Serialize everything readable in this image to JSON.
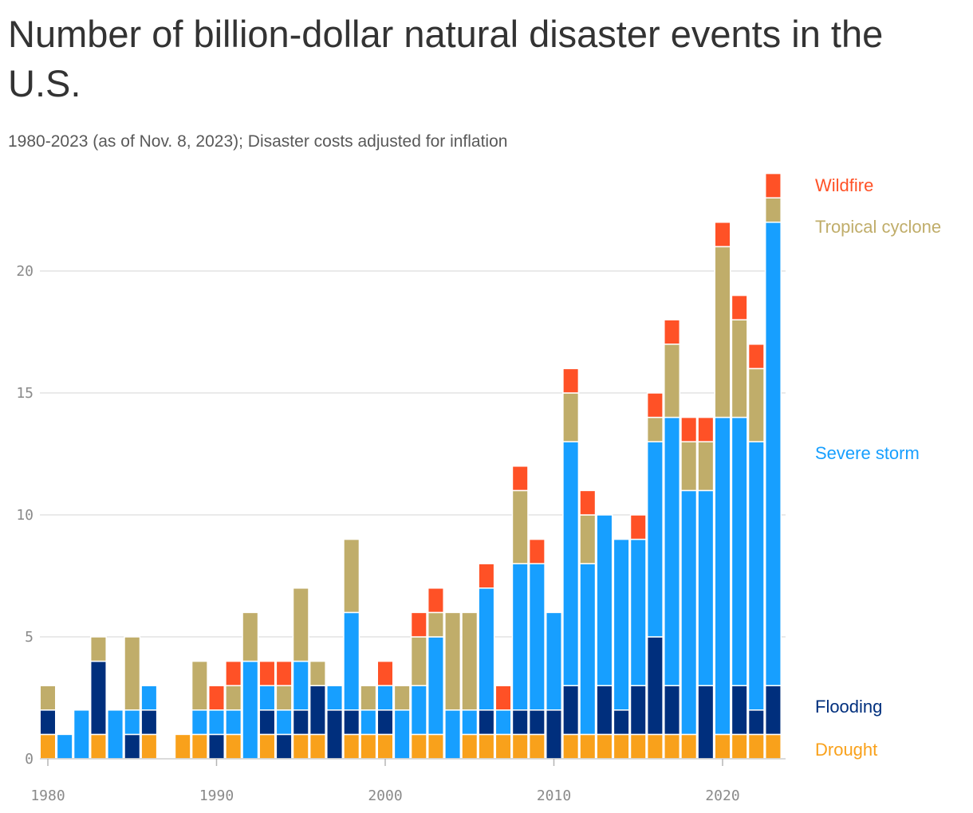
{
  "header": {
    "title": "Number of billion-dollar natural disaster events in the U.S.",
    "subtitle": "1980-2023 (as of Nov. 8, 2023); Disaster costs adjusted for inflation"
  },
  "chart_data": {
    "type": "bar",
    "stacked": true,
    "title": "Number of billion-dollar natural disaster events in the U.S.",
    "subtitle": "1980-2023 (as of Nov. 8, 2023); Disaster costs adjusted for inflation",
    "xlabel": "",
    "ylabel": "",
    "ylim": [
      0,
      24
    ],
    "y_ticks": [
      0,
      5,
      10,
      15,
      20
    ],
    "x_ticks": [
      1980,
      1990,
      2000,
      2010,
      2020
    ],
    "grid": true,
    "legend": "right, labels placed beside their segments",
    "years": [
      1980,
      1981,
      1982,
      1983,
      1984,
      1985,
      1986,
      1987,
      1988,
      1989,
      1990,
      1991,
      1992,
      1993,
      1994,
      1995,
      1996,
      1997,
      1998,
      1999,
      2000,
      2001,
      2002,
      2003,
      2004,
      2005,
      2006,
      2007,
      2008,
      2009,
      2010,
      2011,
      2012,
      2013,
      2014,
      2015,
      2016,
      2017,
      2018,
      2019,
      2020,
      2021,
      2022,
      2023
    ],
    "series": [
      {
        "name": "Drought",
        "color": "#f9a11b",
        "values": [
          1,
          0,
          0,
          1,
          0,
          0,
          1,
          0,
          1,
          1,
          0,
          1,
          0,
          1,
          0,
          1,
          1,
          0,
          1,
          1,
          1,
          0,
          1,
          1,
          0,
          1,
          1,
          1,
          1,
          1,
          0,
          1,
          1,
          1,
          1,
          1,
          1,
          1,
          1,
          0,
          1,
          1,
          1,
          1
        ]
      },
      {
        "name": "Flooding",
        "color": "#002f7d",
        "values": [
          1,
          0,
          0,
          3,
          0,
          1,
          1,
          0,
          0,
          0,
          1,
          0,
          0,
          1,
          1,
          1,
          2,
          2,
          1,
          0,
          1,
          0,
          0,
          0,
          0,
          0,
          1,
          0,
          1,
          1,
          2,
          2,
          0,
          2,
          1,
          2,
          4,
          2,
          0,
          3,
          0,
          2,
          1,
          2
        ]
      },
      {
        "name": "Severe storm",
        "color": "#179fff",
        "values": [
          0,
          1,
          2,
          0,
          2,
          1,
          1,
          0,
          0,
          1,
          1,
          1,
          4,
          1,
          1,
          2,
          0,
          1,
          4,
          1,
          1,
          2,
          2,
          4,
          2,
          1,
          5,
          1,
          6,
          6,
          4,
          10,
          7,
          7,
          7,
          6,
          8,
          11,
          10,
          8,
          13,
          11,
          11,
          19
        ]
      },
      {
        "name": "Tropical cyclone",
        "color": "#c0ad6a",
        "values": [
          1,
          0,
          0,
          1,
          0,
          3,
          0,
          0,
          0,
          2,
          0,
          1,
          2,
          0,
          1,
          3,
          1,
          0,
          3,
          1,
          0,
          1,
          2,
          1,
          4,
          4,
          0,
          0,
          3,
          0,
          0,
          2,
          2,
          0,
          0,
          0,
          1,
          3,
          2,
          2,
          7,
          4,
          3,
          1
        ]
      },
      {
        "name": "Wildfire",
        "color": "#ff5126",
        "values": [
          0,
          0,
          0,
          0,
          0,
          0,
          0,
          0,
          0,
          0,
          1,
          1,
          0,
          1,
          1,
          0,
          0,
          0,
          0,
          0,
          1,
          0,
          1,
          1,
          0,
          0,
          1,
          1,
          1,
          1,
          0,
          1,
          1,
          0,
          0,
          1,
          1,
          1,
          1,
          1,
          1,
          1,
          1,
          1
        ]
      }
    ]
  }
}
